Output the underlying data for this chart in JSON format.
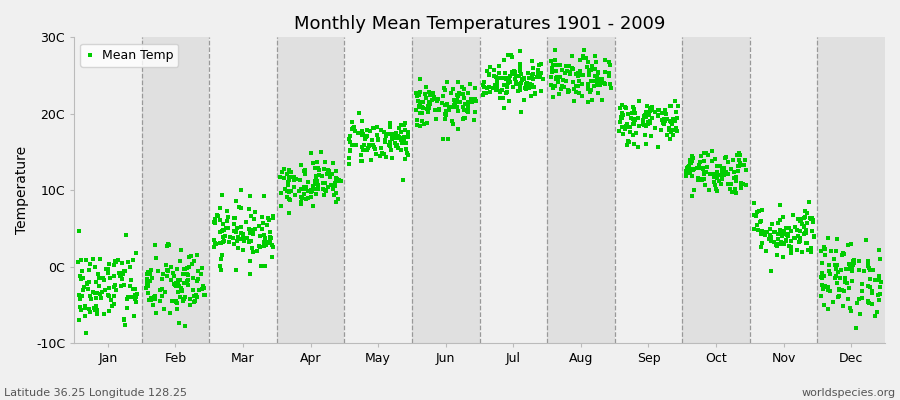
{
  "title": "Monthly Mean Temperatures 1901 - 2009",
  "ylabel": "Temperature",
  "legend_label": "Mean Temp",
  "subtitle": "Latitude 36.25 Longitude 128.25",
  "attribution": "worldspecies.org",
  "fig_background": "#f0f0f0",
  "plot_bg_light": "#f0f0f0",
  "plot_bg_dark": "#e0e0e0",
  "dot_color": "#00cc00",
  "dot_size": 5,
  "ylim": [
    -10,
    30
  ],
  "yticks": [
    -10,
    0,
    10,
    20,
    30
  ],
  "ytick_labels": [
    "-10C",
    "0C",
    "10C",
    "20C",
    "30C"
  ],
  "month_names": [
    "Jan",
    "Feb",
    "Mar",
    "Apr",
    "May",
    "Jun",
    "Jul",
    "Aug",
    "Sep",
    "Oct",
    "Nov",
    "Dec"
  ],
  "monthly_means": [
    -3.0,
    -2.5,
    4.5,
    11.0,
    16.5,
    21.0,
    24.5,
    24.5,
    19.0,
    12.5,
    4.5,
    -1.5
  ],
  "monthly_stds": [
    2.8,
    2.5,
    2.0,
    1.5,
    1.5,
    1.5,
    1.5,
    1.5,
    1.5,
    1.5,
    1.8,
    2.5
  ],
  "n_years": 109,
  "seed": 42
}
